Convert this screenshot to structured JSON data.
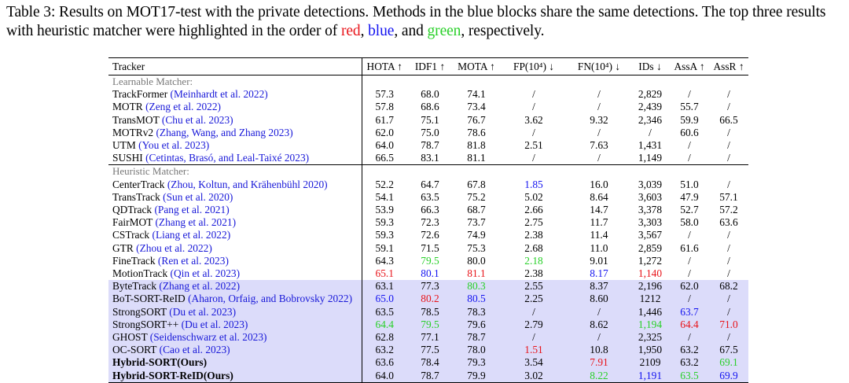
{
  "caption": {
    "prefix": "Table 3: Results on MOT17-test with the private detections. Methods in the blue blocks share the same detections. The top three results with heuristic matcher were highlighted in the order of ",
    "red": "red",
    "sep1": ", ",
    "blue": "blue",
    "sep2": ", and ",
    "green": "green",
    "suffix": ", respectively."
  },
  "columns": [
    "Tracker",
    "HOTA ↑",
    "IDF1 ↑",
    "MOTA ↑",
    "FP(10⁴) ↓",
    "FN(10⁴) ↓",
    "IDs ↓",
    "AssA ↑",
    "AssR ↑"
  ],
  "groups": [
    {
      "title": "Learnable Matcher:",
      "rows": [
        {
          "name": "TrackFormer",
          "cite": "(Meinhardt et al. 2022)",
          "vals": [
            "57.3",
            "68.0",
            "74.1",
            "/",
            "/",
            "2,829",
            "/",
            "/"
          ]
        },
        {
          "name": "MOTR",
          "cite": "(Zeng et al. 2022)",
          "vals": [
            "57.8",
            "68.6",
            "73.4",
            "/",
            "/",
            "2,439",
            "55.7",
            "/"
          ]
        },
        {
          "name": "TransMOT",
          "cite": "(Chu et al. 2023)",
          "vals": [
            "61.7",
            "75.1",
            "76.7",
            "3.62",
            "9.32",
            "2,346",
            "59.9",
            "66.5"
          ]
        },
        {
          "name": "MOTRv2",
          "cite": "(Zhang, Wang, and Zhang 2023)",
          "vals": [
            "62.0",
            "75.0",
            "78.6",
            "/",
            "/",
            "/",
            "60.6",
            "/"
          ]
        },
        {
          "name": "UTM",
          "cite": "(You et al. 2023)",
          "vals": [
            "64.0",
            "78.7",
            "81.8",
            "2.51",
            "7.63",
            "1,431",
            "/",
            "/"
          ]
        },
        {
          "name": "SUSHI",
          "cite": "(Cetintas, Brasó, and Leal-Taixé 2023)",
          "vals": [
            "66.5",
            "83.1",
            "81.1",
            "/",
            "/",
            "1,149",
            "/",
            "/"
          ]
        }
      ]
    },
    {
      "title": "Heuristic Matcher:",
      "rows": [
        {
          "name": "CenterTrack",
          "cite": "(Zhou, Koltun, and Krähenbühl 2020)",
          "vals": [
            "52.2",
            "64.7",
            "67.8",
            "1.85",
            "16.0",
            "3,039",
            "51.0",
            "/"
          ],
          "colors": [
            "",
            "",
            "",
            "blue",
            "",
            "",
            "",
            ""
          ]
        },
        {
          "name": "TransTrack",
          "cite": "(Sun et al. 2020)",
          "vals": [
            "54.1",
            "63.5",
            "75.2",
            "5.02",
            "8.64",
            "3,603",
            "47.9",
            "57.1"
          ]
        },
        {
          "name": "QDTrack",
          "cite": "(Pang et al. 2021)",
          "vals": [
            "53.9",
            "66.3",
            "68.7",
            "2.66",
            "14.7",
            "3,378",
            "52.7",
            "57.2"
          ]
        },
        {
          "name": "FairMOT",
          "cite": "(Zhang et al. 2021)",
          "vals": [
            "59.3",
            "72.3",
            "73.7",
            "2.75",
            "11.7",
            "3,303",
            "58.0",
            "63.6"
          ]
        },
        {
          "name": "CSTrack",
          "cite": "(Liang et al. 2022)",
          "vals": [
            "59.3",
            "72.6",
            "74.9",
            "2.38",
            "11.4",
            "3,567",
            "/",
            "/"
          ]
        },
        {
          "name": "GTR",
          "cite": "(Zhou et al. 2022)",
          "vals": [
            "59.1",
            "71.5",
            "75.3",
            "2.68",
            "11.0",
            "2,859",
            "61.6",
            "/"
          ]
        },
        {
          "name": "FineTrack",
          "cite": "(Ren et al. 2023)",
          "vals": [
            "64.3",
            "79.5",
            "80.0",
            "2.18",
            "9.01",
            "1,272",
            "/",
            "/"
          ],
          "colors": [
            "",
            "green",
            "",
            "green",
            "",
            "",
            "",
            ""
          ]
        },
        {
          "name": "MotionTrack",
          "cite": "(Qin et al. 2023)",
          "vals": [
            "65.1",
            "80.1",
            "81.1",
            "2.38",
            "8.17",
            "1,140",
            "/",
            "/"
          ],
          "colors": [
            "red",
            "blue",
            "red",
            "",
            "blue",
            "red",
            "",
            ""
          ]
        },
        {
          "name": "ByteTrack",
          "cite": "(Zhang et al. 2022)",
          "vals": [
            "63.1",
            "77.3",
            "80.3",
            "2.55",
            "8.37",
            "2,196",
            "62.0",
            "68.2"
          ],
          "colors": [
            "",
            "",
            "green",
            "",
            "",
            "",
            "",
            ""
          ],
          "hl": true
        },
        {
          "name": "BoT-SORT-ReID",
          "cite": "(Aharon, Orfaig, and Bobrovsky 2022)",
          "vals": [
            "65.0",
            "80.2",
            "80.5",
            "2.25",
            "8.60",
            "1212",
            "/",
            "/"
          ],
          "colors": [
            "blue",
            "red",
            "blue",
            "",
            "",
            "",
            "",
            ""
          ],
          "hl": true
        },
        {
          "name": "StrongSORT",
          "cite": "(Du et al. 2023)",
          "vals": [
            "63.5",
            "78.5",
            "78.3",
            "/",
            "/",
            "1,446",
            "63.7",
            "/"
          ],
          "colors": [
            "",
            "",
            "",
            "",
            "",
            "",
            "blue",
            ""
          ],
          "hl": true
        },
        {
          "name": "StrongSORT++",
          "cite": "(Du et al. 2023)",
          "vals": [
            "64.4",
            "79.5",
            "79.6",
            "2.79",
            "8.62",
            "1,194",
            "64.4",
            "71.0"
          ],
          "colors": [
            "green",
            "green",
            "",
            "",
            "",
            "green",
            "red",
            "red"
          ],
          "hl": true
        },
        {
          "name": "GHOST",
          "cite": "(Seidenschwarz et al. 2023)",
          "vals": [
            "62.8",
            "77.1",
            "78.7",
            "/",
            "/",
            "2,325",
            "/",
            "/"
          ],
          "hl": true
        },
        {
          "name": "OC-SORT",
          "cite": "(Cao et al. 2023)",
          "vals": [
            "63.2",
            "77.5",
            "78.0",
            "1.51",
            "10.8",
            "1,950",
            "63.2",
            "67.5"
          ],
          "colors": [
            "",
            "",
            "",
            "red",
            "",
            "",
            "",
            ""
          ],
          "hl": true
        },
        {
          "name": "Hybrid-SORT(Ours)",
          "cite": "",
          "bold": true,
          "vals": [
            "63.6",
            "78.4",
            "79.3",
            "3.54",
            "7.91",
            "2109",
            "63.2",
            "69.1"
          ],
          "colors": [
            "",
            "",
            "",
            "",
            "red",
            "",
            "",
            "green"
          ],
          "hl": true
        },
        {
          "name": "Hybrid-SORT-ReID(Ours)",
          "cite": "",
          "bold": true,
          "vals": [
            "64.0",
            "78.7",
            "79.9",
            "3.02",
            "8.22",
            "1,191",
            "63.5",
            "69.9"
          ],
          "colors": [
            "",
            "",
            "",
            "",
            "green",
            "blue",
            "green",
            "blue"
          ],
          "hl": true
        }
      ]
    }
  ]
}
